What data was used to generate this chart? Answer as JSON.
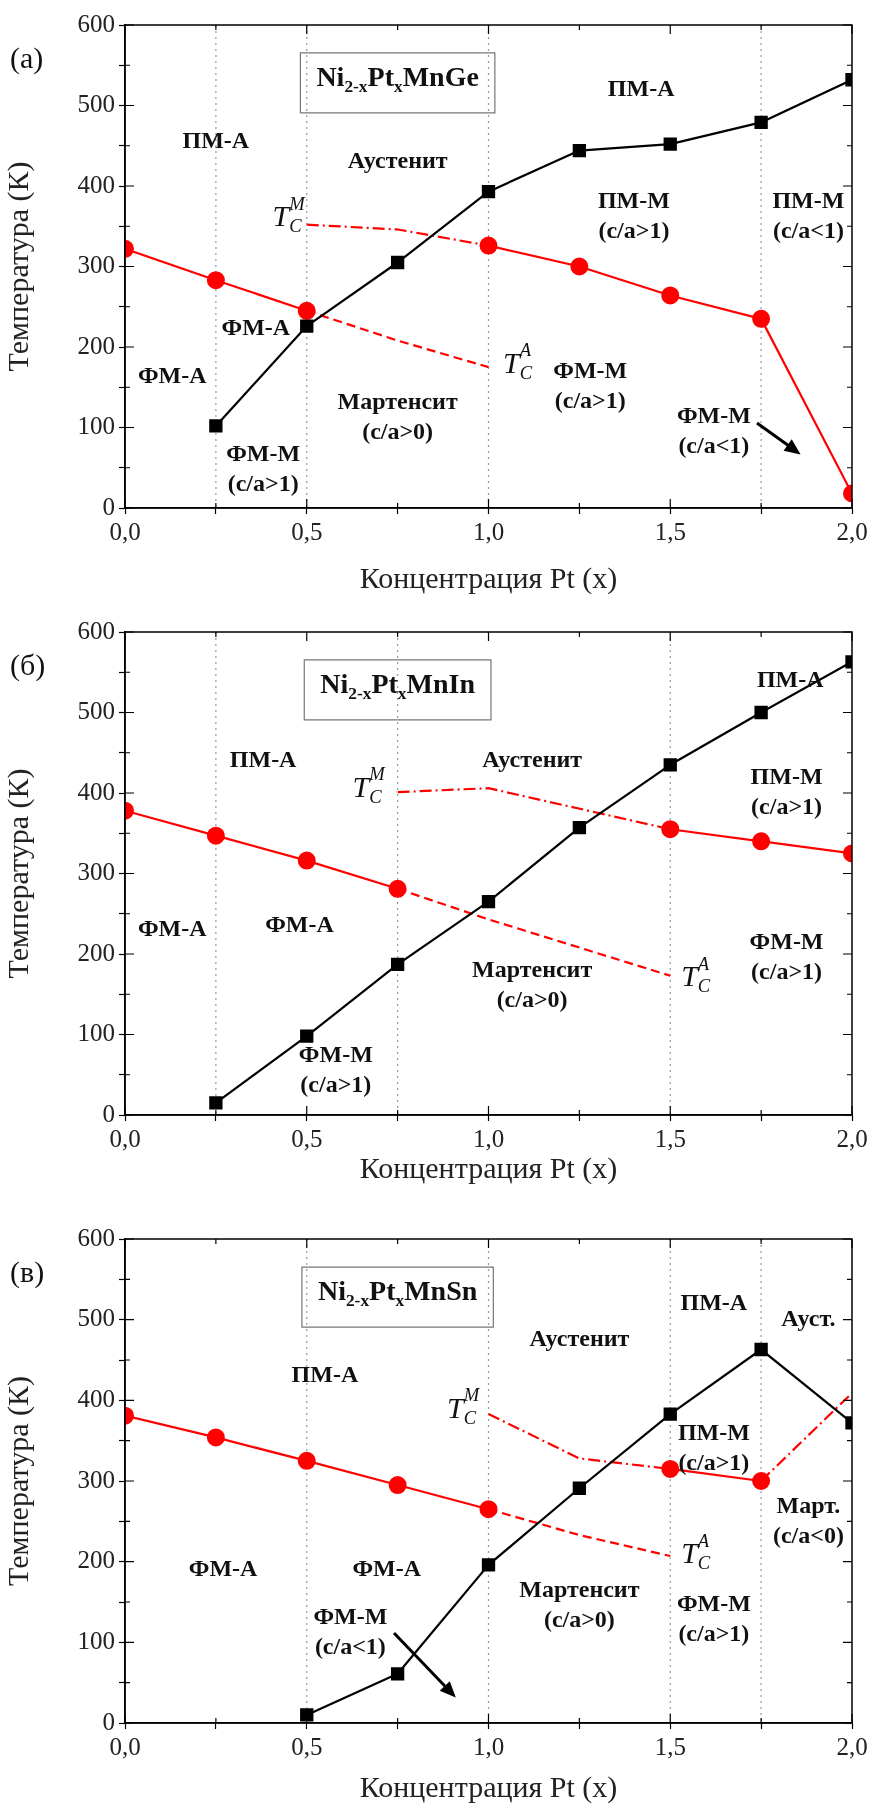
{
  "chart_data": [
    {
      "type": "line",
      "title": "(a)",
      "subtitle": "Ni$_{2-x}$Pt$_{x}$MnGe",
      "xlabel": "Концентрация Pt (x)",
      "ylabel": "Температура (К)",
      "xlim": [
        0,
        2
      ],
      "ylim": [
        0,
        600
      ],
      "xticks": [
        {
          "value": 0,
          "label": "0,0"
        },
        {
          "value": 0.25,
          "label": null
        },
        {
          "value": 0.5,
          "label": "0,5"
        },
        {
          "value": 0.75,
          "label": null
        },
        {
          "value": 1,
          "label": "1,0"
        },
        {
          "value": 1.25,
          "label": null
        },
        {
          "value": 1.5,
          "label": "1,5"
        },
        {
          "value": 1.75,
          "label": null
        },
        {
          "value": 2,
          "label": "2,0"
        }
      ],
      "yticks": [
        0,
        {
          "value": 50,
          "label": null
        },
        100,
        {
          "value": 150,
          "label": null
        },
        200,
        {
          "value": 250,
          "label": null
        },
        300,
        {
          "value": 350,
          "label": null
        },
        400,
        {
          "value": 450,
          "label": null
        },
        500,
        {
          "value": 550,
          "label": null
        },
        600
      ],
      "ref_lines": [
        {
          "axis": "x",
          "value": 0.25,
          "color": "#999999",
          "line_style": "dotted"
        },
        {
          "axis": "x",
          "value": 0.5,
          "color": "#999999",
          "line_style": "dotted"
        },
        {
          "axis": "x",
          "value": 1,
          "color": "#999999",
          "line_style": "dotted"
        },
        {
          "axis": "x",
          "value": 1.75,
          "color": "#999999",
          "line_style": "dotted"
        }
      ],
      "series": [
        {
          "color": "#000000",
          "line_style": "solid",
          "marker": "square",
          "x": [
            0.25,
            0.5,
            0.75,
            1,
            1.25,
            1.5,
            1.75,
            2
          ],
          "values": [
            102,
            226,
            305,
            393,
            444,
            452,
            479,
            532
          ]
        },
        {
          "color": "#ff0000",
          "line_style": "solid",
          "marker": "circle",
          "x": [
            0,
            0.25,
            0.5
          ],
          "values": [
            322,
            283,
            245
          ]
        },
        {
          "color": "#ff0000",
          "line_style": "solid",
          "marker": "circle",
          "x": [
            1,
            1.25,
            1.5,
            1.75,
            2
          ],
          "values": [
            326,
            300,
            264,
            235,
            18
          ]
        },
        {
          "color": "#ff0000",
          "line_style": "dashdot",
          "marker": "none",
          "x": [
            0.5,
            0.75,
            1
          ],
          "values": [
            352,
            346,
            326
          ]
        },
        {
          "color": "#ff0000",
          "line_style": "dashed",
          "marker": "none",
          "x": [
            0.5,
            0.75,
            1
          ],
          "values": [
            245,
            208,
            175
          ]
        }
      ],
      "annotations": [
        "ПМ-А",
        "Аустенит",
        "ПМ-А",
        "T$_{C}$$^{M}$",
        "ПМ-М\n(c/a>1)",
        "ПМ-М\n(c/a<1)",
        "ФМ-А",
        "ФМ-А",
        "T$_{C}$$^{A}$",
        "ФМ-М\n(c/a>1)",
        "Мартенсит\n(c/a>0)",
        "ФМ-М\n(c/a<1)",
        "ФМ-М\n(c/a>1)"
      ]
    },
    {
      "type": "line",
      "title": "(б)",
      "subtitle": "Ni$_{2-x}$Pt$_{x}$MnIn",
      "xlabel": "Концентрация Pt (x)",
      "ylabel": "Температура (К)",
      "xlim": [
        0,
        2
      ],
      "ylim": [
        0,
        600
      ],
      "xticks": [
        {
          "value": 0,
          "label": "0,0"
        },
        {
          "value": 0.25,
          "label": null
        },
        {
          "value": 0.5,
          "label": "0,5"
        },
        {
          "value": 0.75,
          "label": null
        },
        {
          "value": 1,
          "label": "1,0"
        },
        {
          "value": 1.25,
          "label": null
        },
        {
          "value": 1.5,
          "label": "1,5"
        },
        {
          "value": 1.75,
          "label": null
        },
        {
          "value": 2,
          "label": "2,0"
        }
      ],
      "yticks": [
        0,
        {
          "value": 50,
          "label": null
        },
        100,
        {
          "value": 150,
          "label": null
        },
        200,
        {
          "value": 250,
          "label": null
        },
        300,
        {
          "value": 350,
          "label": null
        },
        400,
        {
          "value": 450,
          "label": null
        },
        500,
        {
          "value": 550,
          "label": null
        },
        600
      ],
      "ref_lines": [
        {
          "axis": "x",
          "value": 0.25,
          "color": "#999999",
          "line_style": "dotted"
        },
        {
          "axis": "x",
          "value": 0.75,
          "color": "#999999",
          "line_style": "dotted"
        },
        {
          "axis": "x",
          "value": 1.5,
          "color": "#999999",
          "line_style": "dotted"
        }
      ],
      "series": [
        {
          "color": "#000000",
          "line_style": "solid",
          "marker": "square",
          "x": [
            0.25,
            0.5,
            0.75,
            1,
            1.25,
            1.5,
            1.75,
            2
          ],
          "values": [
            15,
            98,
            187,
            265,
            357,
            435,
            500,
            563
          ]
        },
        {
          "color": "#ff0000",
          "line_style": "solid",
          "marker": "circle",
          "x": [
            0,
            0.25,
            0.5,
            0.75
          ],
          "values": [
            378,
            347,
            316,
            281
          ]
        },
        {
          "color": "#ff0000",
          "line_style": "solid",
          "marker": "circle",
          "x": [
            1.5,
            1.75,
            2
          ],
          "values": [
            355,
            340,
            325
          ]
        },
        {
          "color": "#ff0000",
          "line_style": "dashdot",
          "marker": "none",
          "x": [
            0.75,
            1,
            1.5
          ],
          "values": [
            401,
            406,
            355
          ]
        },
        {
          "color": "#ff0000",
          "line_style": "dashed",
          "marker": "none",
          "x": [
            0.75,
            1,
            1.5
          ],
          "values": [
            281,
            243,
            173
          ]
        }
      ],
      "annotations": [
        "ПМ-А",
        "Аустенит",
        "ПМ-А",
        "T$_{C}$$^{M}$",
        "ПМ-М\n(c/a>1)",
        "ФМ-А",
        "ФМ-А",
        "Мартенсит\n(c/a>0)",
        "T$_{C}$$^{A}$",
        "ФМ-М\n(c/a>1)",
        "ФМ-М\n(c/a>1)"
      ]
    },
    {
      "type": "line",
      "title": "(в)",
      "subtitle": "Ni$_{2-x}$Pt$_{x}$MnSn",
      "xlabel": "Концентрация Pt (x)",
      "ylabel": "Температура (К)",
      "xlim": [
        0,
        2
      ],
      "ylim": [
        0,
        600
      ],
      "xticks": [
        {
          "value": 0,
          "label": "0,0"
        },
        {
          "value": 0.25,
          "label": null
        },
        {
          "value": 0.5,
          "label": "0,5"
        },
        {
          "value": 0.75,
          "label": null
        },
        {
          "value": 1,
          "label": "1,0"
        },
        {
          "value": 1.25,
          "label": null
        },
        {
          "value": 1.5,
          "label": "1,5"
        },
        {
          "value": 1.75,
          "label": null
        },
        {
          "value": 2,
          "label": "2,0"
        }
      ],
      "yticks": [
        0,
        {
          "value": 50,
          "label": null
        },
        100,
        {
          "value": 150,
          "label": null
        },
        200,
        {
          "value": 250,
          "label": null
        },
        300,
        {
          "value": 350,
          "label": null
        },
        400,
        {
          "value": 450,
          "label": null
        },
        500,
        {
          "value": 550,
          "label": null
        },
        600
      ],
      "ref_lines": [
        {
          "axis": "x",
          "value": 0.5,
          "color": "#999999",
          "line_style": "dotted"
        },
        {
          "axis": "x",
          "value": 1,
          "color": "#999999",
          "line_style": "dotted"
        },
        {
          "axis": "x",
          "value": 1.5,
          "color": "#999999",
          "line_style": "dotted"
        },
        {
          "axis": "x",
          "value": 1.75,
          "color": "#999999",
          "line_style": "dotted"
        }
      ],
      "series": [
        {
          "color": "#000000",
          "line_style": "solid",
          "marker": "square",
          "x": [
            0.5,
            0.75,
            1,
            1.25,
            1.5,
            1.75,
            2
          ],
          "values": [
            10,
            61,
            196,
            291,
            383,
            463,
            372
          ]
        },
        {
          "color": "#ff0000",
          "line_style": "solid",
          "marker": "circle",
          "x": [
            0,
            0.25,
            0.5,
            0.75,
            1
          ],
          "values": [
            381,
            354,
            325,
            295,
            265
          ]
        },
        {
          "color": "#ff0000",
          "line_style": "solid",
          "marker": "circle",
          "x": [
            1.5,
            1.75
          ],
          "values": [
            315,
            300
          ]
        },
        {
          "color": "#ff0000",
          "line_style": "dashdot",
          "marker": "none",
          "x": [
            1,
            1.25,
            1.5
          ],
          "values": [
            383,
            328,
            315
          ]
        },
        {
          "color": "#ff0000",
          "line_style": "dashdot",
          "marker": "none",
          "x": [
            1.75,
            2
          ],
          "values": [
            300,
            409
          ]
        },
        {
          "color": "#ff0000",
          "line_style": "dashed",
          "marker": "none",
          "x": [
            1,
            1.25,
            1.5
          ],
          "values": [
            265,
            233,
            207
          ]
        }
      ],
      "annotations": [
        "ПМ-А",
        "Аустенит",
        "ПМ-А",
        "Ауст.",
        "T$_{C}$$^{M}$",
        "ПМ-М\n(c/a>1)",
        "Март.\n(c/a<0)",
        "ФМ-А",
        "ФМ-А",
        "T$_{C}$$^{A}$",
        "Мартенсит\n(c/a>0)",
        "ФМ-М\n(c/a>1)",
        "ФМ-М\n(c/a<1)"
      ]
    }
  ]
}
